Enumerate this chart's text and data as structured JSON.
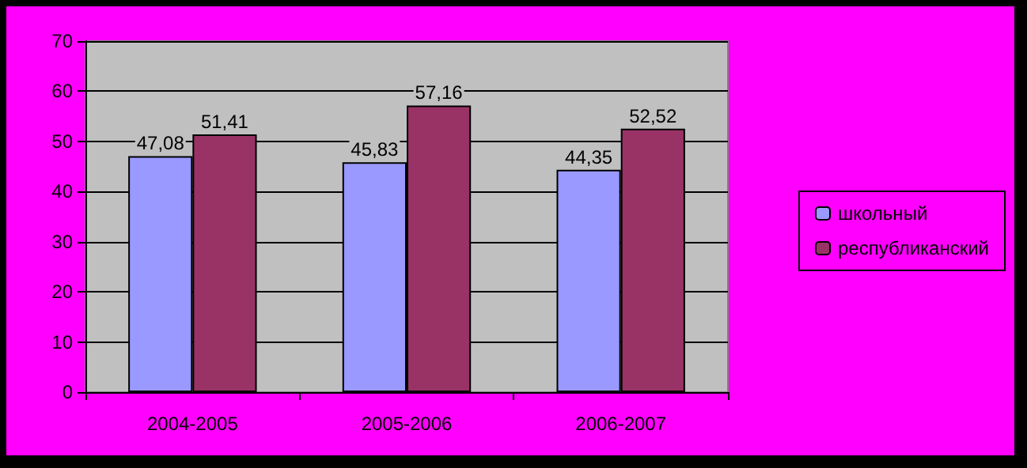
{
  "chart_data": {
    "type": "bar",
    "categories": [
      "2004-2005",
      "2005-2006",
      "2006-2007"
    ],
    "series": [
      {
        "name": "школьный",
        "color": "#9999ff",
        "values": [
          47.08,
          45.83,
          44.35
        ],
        "value_labels": [
          "47,08",
          "45,83",
          "44,35"
        ]
      },
      {
        "name": "республиканский",
        "color": "#993366",
        "values": [
          51.41,
          57.16,
          52.52
        ],
        "value_labels": [
          "51,41",
          "57,16",
          "52,52"
        ]
      }
    ],
    "ylim": [
      0,
      70
    ],
    "yticks": [
      0,
      10,
      20,
      30,
      40,
      50,
      60,
      70
    ],
    "grid": "y",
    "legend": "right"
  }
}
